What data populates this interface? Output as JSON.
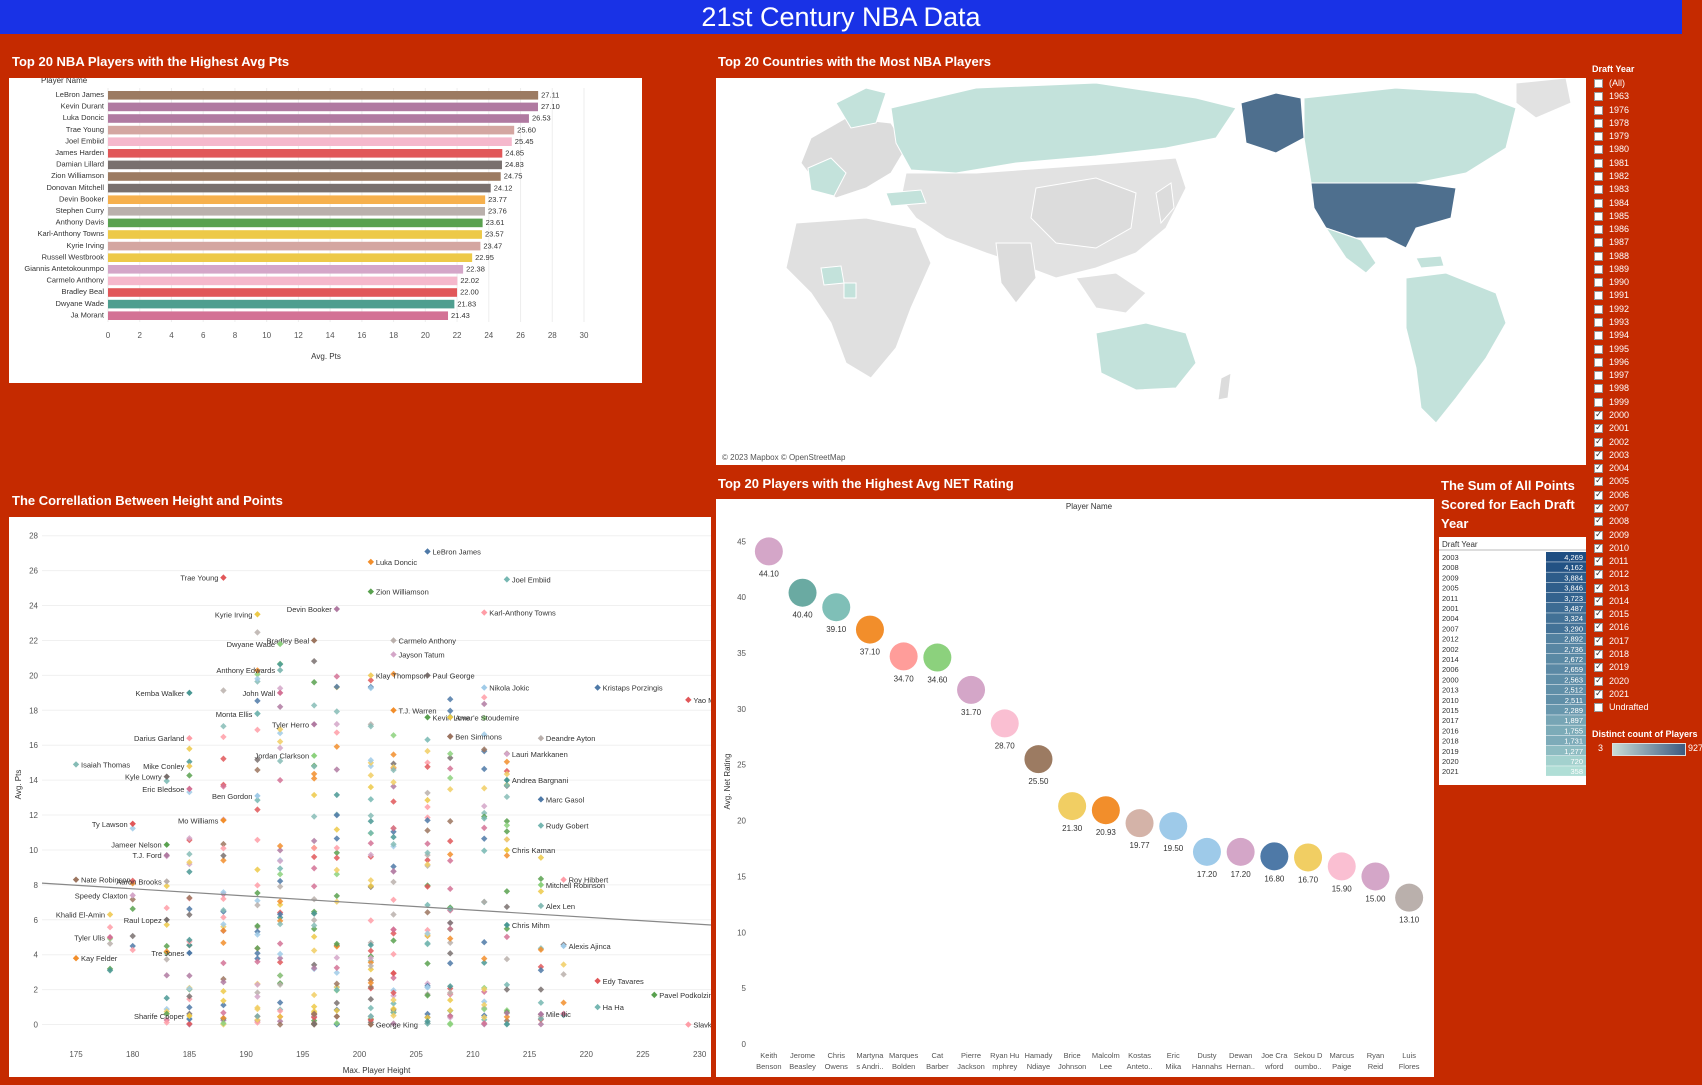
{
  "dashboard_title": "21st Century NBA Data",
  "colors": {
    "background": "#c52a00",
    "banner": "#1932e6"
  },
  "bar_panel": {
    "title": "Top 20 NBA Players with the Highest Avg Pts",
    "y_header": "Player Name",
    "x_label": "Avg. Pts"
  },
  "map_panel": {
    "title": "Top 20 Countries with the Most NBA Players",
    "attribution": "© 2023 Mapbox © OpenStreetMap"
  },
  "scatter_panel": {
    "title": "The Correllation Between Height and Points"
  },
  "bubble_panel": {
    "title": "Top 20 Players with the Highest Avg NET Rating",
    "header": "Player Name",
    "y_label": "Avg. Net Rating"
  },
  "sum_panel": {
    "title": "The Sum of All Points Scored for Each Draft Year",
    "header": "Draft Year"
  },
  "draft_filter": {
    "title": "Draft Year",
    "items": [
      {
        "label": "(All)",
        "checked": false
      },
      {
        "label": "1963",
        "checked": false
      },
      {
        "label": "1976",
        "checked": false
      },
      {
        "label": "1978",
        "checked": false
      },
      {
        "label": "1979",
        "checked": false
      },
      {
        "label": "1980",
        "checked": false
      },
      {
        "label": "1981",
        "checked": false
      },
      {
        "label": "1982",
        "checked": false
      },
      {
        "label": "1983",
        "checked": false
      },
      {
        "label": "1984",
        "checked": false
      },
      {
        "label": "1985",
        "checked": false
      },
      {
        "label": "1986",
        "checked": false
      },
      {
        "label": "1987",
        "checked": false
      },
      {
        "label": "1988",
        "checked": false
      },
      {
        "label": "1989",
        "checked": false
      },
      {
        "label": "1990",
        "checked": false
      },
      {
        "label": "1991",
        "checked": false
      },
      {
        "label": "1992",
        "checked": false
      },
      {
        "label": "1993",
        "checked": false
      },
      {
        "label": "1994",
        "checked": false
      },
      {
        "label": "1995",
        "checked": false
      },
      {
        "label": "1996",
        "checked": false
      },
      {
        "label": "1997",
        "checked": false
      },
      {
        "label": "1998",
        "checked": false
      },
      {
        "label": "1999",
        "checked": false
      },
      {
        "label": "2000",
        "checked": true
      },
      {
        "label": "2001",
        "checked": true
      },
      {
        "label": "2002",
        "checked": true
      },
      {
        "label": "2003",
        "checked": true
      },
      {
        "label": "2004",
        "checked": true
      },
      {
        "label": "2005",
        "checked": true
      },
      {
        "label": "2006",
        "checked": true
      },
      {
        "label": "2007",
        "checked": true
      },
      {
        "label": "2008",
        "checked": true
      },
      {
        "label": "2009",
        "checked": true
      },
      {
        "label": "2010",
        "checked": true
      },
      {
        "label": "2011",
        "checked": true
      },
      {
        "label": "2012",
        "checked": true
      },
      {
        "label": "2013",
        "checked": true
      },
      {
        "label": "2014",
        "checked": true
      },
      {
        "label": "2015",
        "checked": true
      },
      {
        "label": "2016",
        "checked": true
      },
      {
        "label": "2017",
        "checked": true
      },
      {
        "label": "2018",
        "checked": true
      },
      {
        "label": "2019",
        "checked": true
      },
      {
        "label": "2020",
        "checked": true
      },
      {
        "label": "2021",
        "checked": true
      },
      {
        "label": "Undrafted",
        "checked": false
      }
    ]
  },
  "color_legend": {
    "title": "Distinct count of Players",
    "min": "3",
    "max": "927"
  },
  "chart_data": [
    {
      "type": "bar",
      "orientation": "horizontal",
      "title": "Top 20 NBA Players with the Highest Avg Pts",
      "xlabel": "Avg. Pts",
      "ylabel": "Player Name",
      "xlim": [
        0,
        30
      ],
      "xticks": [
        0,
        2,
        4,
        6,
        8,
        10,
        12,
        14,
        16,
        18,
        20,
        22,
        24,
        26,
        28,
        30
      ],
      "categories": [
        "LeBron James",
        "Kevin Durant",
        "Luka Doncic",
        "Trae Young",
        "Joel Embiid",
        "James Harden",
        "Damian Lillard",
        "Zion Williamson",
        "Donovan Mitchell",
        "Devin Booker",
        "Stephen Curry",
        "Anthony Davis",
        "Karl-Anthony Towns",
        "Kyrie Irving",
        "Russell Westbrook",
        "Giannis Antetokounmpo",
        "Carmelo Anthony",
        "Bradley Beal",
        "Dwyane Wade",
        "Ja Morant"
      ],
      "values": [
        27.11,
        27.1,
        26.53,
        25.6,
        25.45,
        24.85,
        24.83,
        24.75,
        24.12,
        23.77,
        23.76,
        23.61,
        23.57,
        23.47,
        22.95,
        22.38,
        22.02,
        22.0,
        21.83,
        21.43
      ],
      "labels": [
        "27.11",
        "27.10",
        "26.53",
        "25.60",
        "25.45",
        "24.85",
        "24.83",
        "24.75",
        "24.12",
        "23.77",
        "23.76",
        "23.61",
        "23.57",
        "23.47",
        "22.95",
        "22.38",
        "22.02",
        "22.00",
        "21.83",
        "21.43"
      ],
      "colors": [
        "#9c7b62",
        "#b07aa1",
        "#b07aa1",
        "#d4a6a1",
        "#f5b8cc",
        "#e15759",
        "#79706e",
        "#9c7b62",
        "#79706e",
        "#f6b04d",
        "#bab0ac",
        "#59a14f",
        "#edc948",
        "#d4a6a1",
        "#edc948",
        "#d4a6c8",
        "#f5b8cc",
        "#e15759",
        "#4e9e8f",
        "#d37295"
      ]
    },
    {
      "type": "map",
      "title": "Top 20 Countries with the Most NBA Players",
      "highlighted": [
        "United States"
      ],
      "shaded": [
        "Canada",
        "Russia",
        "Australia",
        "Brazil",
        "France",
        "Spain",
        "Germany",
        "Argentina",
        "Serbia",
        "Greece",
        "Turkey",
        "Nigeria",
        "Italy",
        "Lithuania",
        "Croatia",
        "Slovenia",
        "Mexico",
        "Dominican Republic",
        "Cameroon"
      ]
    },
    {
      "type": "scatter",
      "title": "The Correllation Between Height and Points",
      "xlabel": "Max. Player Height",
      "ylabel": "Avg. Pts",
      "xlim": [
        172,
        231
      ],
      "ylim": [
        -1,
        28.5
      ],
      "xticks": [
        175,
        180,
        185,
        190,
        195,
        200,
        205,
        210,
        215,
        220,
        225,
        230
      ],
      "yticks": [
        0,
        2,
        4,
        6,
        8,
        10,
        12,
        14,
        16,
        18,
        20,
        22,
        24,
        26,
        28
      ],
      "trend_line": {
        "x": [
          172,
          231
        ],
        "y": [
          8.1,
          5.7
        ]
      },
      "labeled_points": [
        {
          "name": "LeBron James",
          "x": 206,
          "y": 27.1
        },
        {
          "name": "Luka Doncic",
          "x": 201,
          "y": 26.5
        },
        {
          "name": "Trae Young",
          "x": 188,
          "y": 25.6
        },
        {
          "name": "Joel Embiid",
          "x": 213,
          "y": 25.5
        },
        {
          "name": "Zion Williamson",
          "x": 201,
          "y": 24.8
        },
        {
          "name": "Kyrie Irving",
          "x": 191,
          "y": 23.5
        },
        {
          "name": "Devin Booker",
          "x": 198,
          "y": 23.8
        },
        {
          "name": "Karl-Anthony Towns",
          "x": 211,
          "y": 23.6
        },
        {
          "name": "Bradley Beal",
          "x": 196,
          "y": 22.0
        },
        {
          "name": "Carmelo Anthony",
          "x": 203,
          "y": 22.0
        },
        {
          "name": "Dwyane Wade",
          "x": 193,
          "y": 21.8
        },
        {
          "name": "Jayson Tatum",
          "x": 203,
          "y": 21.2
        },
        {
          "name": "Anthony Edwards",
          "x": 193,
          "y": 20.3
        },
        {
          "name": "Klay Thompson",
          "x": 201,
          "y": 20.0
        },
        {
          "name": "Paul George",
          "x": 206,
          "y": 20.0
        },
        {
          "name": "Kemba Walker",
          "x": 185,
          "y": 19.0
        },
        {
          "name": "John Wall",
          "x": 193,
          "y": 19.0
        },
        {
          "name": "Nikola Jokic",
          "x": 211,
          "y": 19.3
        },
        {
          "name": "Kristaps Porzingis",
          "x": 221,
          "y": 19.3
        },
        {
          "name": "T.J. Warren",
          "x": 203,
          "y": 18.0
        },
        {
          "name": "Yao Ming",
          "x": 229,
          "y": 18.6
        },
        {
          "name": "Monta Ellis",
          "x": 191,
          "y": 17.8
        },
        {
          "name": "Kevin Love",
          "x": 206,
          "y": 17.6
        },
        {
          "name": "Amar'e Stoudemire",
          "x": 208,
          "y": 17.6
        },
        {
          "name": "Tyler Herro",
          "x": 196,
          "y": 17.2
        },
        {
          "name": "Darius Garland",
          "x": 185,
          "y": 16.4
        },
        {
          "name": "Ben Simmons",
          "x": 208,
          "y": 16.5
        },
        {
          "name": "Deandre Ayton",
          "x": 216,
          "y": 16.4
        },
        {
          "name": "Jordan Clarkson",
          "x": 196,
          "y": 15.4
        },
        {
          "name": "Lauri Markkanen",
          "x": 213,
          "y": 15.5
        },
        {
          "name": "Isaiah Thomas",
          "x": 175,
          "y": 14.9
        },
        {
          "name": "Mike Conley",
          "x": 185,
          "y": 14.8
        },
        {
          "name": "Kyle Lowry",
          "x": 183,
          "y": 14.2
        },
        {
          "name": "Andrea Bargnani",
          "x": 213,
          "y": 14.0
        },
        {
          "name": "Eric Bledsoe",
          "x": 185,
          "y": 13.5
        },
        {
          "name": "Ben Gordon",
          "x": 191,
          "y": 13.1
        },
        {
          "name": "Marc Gasol",
          "x": 216,
          "y": 12.9
        },
        {
          "name": "Mo Williams",
          "x": 188,
          "y": 11.7
        },
        {
          "name": "Ty Lawson",
          "x": 180,
          "y": 11.5
        },
        {
          "name": "Rudy Gobert",
          "x": 216,
          "y": 11.4
        },
        {
          "name": "Jameer Nelson",
          "x": 183,
          "y": 10.3
        },
        {
          "name": "Chris Kaman",
          "x": 213,
          "y": 10.0
        },
        {
          "name": "T.J. Ford",
          "x": 183,
          "y": 9.7
        },
        {
          "name": "Roy Hibbert",
          "x": 218,
          "y": 8.3
        },
        {
          "name": "Nate Robinson",
          "x": 175,
          "y": 8.3
        },
        {
          "name": "Aaron Brooks",
          "x": 183,
          "y": 8.2
        },
        {
          "name": "Mitchell Robinson",
          "x": 216,
          "y": 8.0
        },
        {
          "name": "Speedy Claxton",
          "x": 180,
          "y": 7.4
        },
        {
          "name": "Alex Len",
          "x": 216,
          "y": 6.8
        },
        {
          "name": "Khalid El-Amin",
          "x": 178,
          "y": 6.3
        },
        {
          "name": "Raul Lopez",
          "x": 183,
          "y": 6.0
        },
        {
          "name": "Chris Mihm",
          "x": 213,
          "y": 5.7
        },
        {
          "name": "Tyler Ulis",
          "x": 178,
          "y": 5.0
        },
        {
          "name": "Alexis Ajinca",
          "x": 218,
          "y": 4.5
        },
        {
          "name": "Tre Jones",
          "x": 185,
          "y": 4.1
        },
        {
          "name": "Kay Felder",
          "x": 175,
          "y": 3.8
        },
        {
          "name": "Edy Tavares",
          "x": 221,
          "y": 2.5
        },
        {
          "name": "Ha Ha",
          "x": 221,
          "y": 1.0
        },
        {
          "name": "Pavel Podkolzin",
          "x": 226,
          "y": 1.7
        },
        {
          "name": "Sharife Cooper",
          "x": 185,
          "y": 0.5
        },
        {
          "name": "Mile Ilic",
          "x": 216,
          "y": 0.6
        },
        {
          "name": "Slavko Vranes",
          "x": 229,
          "y": 0.0
        },
        {
          "name": "George King",
          "x": 201,
          "y": 0.0
        }
      ],
      "scatter_density": {
        "heights": [
          178,
          180,
          183,
          185,
          188,
          191,
          193,
          196,
          198,
          201,
          203,
          206,
          208,
          211,
          213,
          216,
          218
        ],
        "ranges": [
          [
            3,
            9
          ],
          [
            4,
            12
          ],
          [
            0,
            15
          ],
          [
            0,
            17
          ],
          [
            0,
            20
          ],
          [
            0,
            24
          ],
          [
            0,
            22
          ],
          [
            0,
            22
          ],
          [
            0,
            21
          ],
          [
            0,
            20
          ],
          [
            0,
            21
          ],
          [
            0,
            17
          ],
          [
            0,
            19
          ],
          [
            0,
            19
          ],
          [
            0,
            16
          ],
          [
            0,
            10
          ],
          [
            0,
            8
          ]
        ],
        "counts": [
          5,
          8,
          16,
          30,
          34,
          38,
          40,
          42,
          40,
          44,
          42,
          40,
          38,
          32,
          28,
          14,
          6
        ]
      }
    },
    {
      "type": "bubble",
      "title": "Top 20 Players with the Highest Avg NET Rating",
      "xlabel": "Player Name",
      "ylabel": "Avg. Net Rating",
      "ylim": [
        0,
        47
      ],
      "yticks": [
        0,
        5,
        10,
        15,
        20,
        25,
        30,
        35,
        40,
        45
      ],
      "categories": [
        "Keith Benson",
        "Jerome Beasley",
        "Chris Owens",
        "Martynas Andriuskevicius",
        "Marques Bolden",
        "Cat Barber",
        "Pierre Jackson",
        "Ryan Humphrey",
        "Hamady Ndiaye",
        "Brice Johnson",
        "Malcolm Lee",
        "Kostas Antetokounmpo",
        "Eric Mika",
        "Dusty Hannahs",
        "Dewan Hernandez",
        "Joe Crawford",
        "Sekou Doumbouya",
        "Marcus Paige",
        "Ryan Reid",
        "Luis Flores"
      ],
      "category_labels": [
        [
          "Keith",
          "Benson"
        ],
        [
          "Jerome",
          "Beasley"
        ],
        [
          "Chris",
          "Owens"
        ],
        [
          "Martyna",
          "s Andri.."
        ],
        [
          "Marques",
          "Bolden"
        ],
        [
          "Cat",
          "Barber"
        ],
        [
          "Pierre",
          "Jackson"
        ],
        [
          "Ryan Hu",
          "mphrey"
        ],
        [
          "Hamady",
          "Ndiaye"
        ],
        [
          "Brice",
          "Johnson"
        ],
        [
          "Malcolm",
          "Lee"
        ],
        [
          "Kostas",
          "Anteto.."
        ],
        [
          "Eric",
          "Mika"
        ],
        [
          "Dusty",
          "Hannahs"
        ],
        [
          "Dewan",
          "Hernan.."
        ],
        [
          "Joe Cra",
          "wford"
        ],
        [
          "Sekou D",
          "oumbo.."
        ],
        [
          "Marcus",
          "Paige"
        ],
        [
          "Ryan",
          "Reid"
        ],
        [
          "Luis",
          "Flores"
        ]
      ],
      "values": [
        44.1,
        40.4,
        39.1,
        37.1,
        34.7,
        34.6,
        31.7,
        28.7,
        25.5,
        21.3,
        20.93,
        19.77,
        19.5,
        17.2,
        17.2,
        16.8,
        16.7,
        15.9,
        15.0,
        13.1
      ],
      "labels": [
        "44.10",
        "40.40",
        "39.10",
        "37.10",
        "34.70",
        "34.60",
        "31.70",
        "28.70",
        "25.50",
        "21.30",
        "20.93",
        "19.77",
        "19.50",
        "17.20",
        "17.20",
        "16.80",
        "16.70",
        "15.90",
        "15.00",
        "13.10"
      ],
      "colors": [
        "#d4a6c8",
        "#6aaaa2",
        "#7fbfb7",
        "#f28e2b",
        "#ff9d9a",
        "#8cd17d",
        "#d4a6c8",
        "#fabfd2",
        "#9c7b62",
        "#f1ce63",
        "#f28e2b",
        "#d4b3a8",
        "#9ecae9",
        "#9ecae9",
        "#d4a6c8",
        "#4e79a7",
        "#f1ce63",
        "#fabfd2",
        "#d4a6c8",
        "#bab0ac"
      ]
    },
    {
      "type": "table",
      "title": "The Sum of All Points Scored for Each Draft Year",
      "columns": [
        "Draft Year",
        "Sum of Points"
      ],
      "rows": [
        "2003",
        "2008",
        "2009",
        "2005",
        "2011",
        "2001",
        "2004",
        "2007",
        "2012",
        "2002",
        "2014",
        "2006",
        "2000",
        "2013",
        "2010",
        "2015",
        "2017",
        "2016",
        "2018",
        "2019",
        "2020",
        "2021"
      ],
      "values": [
        4269,
        4162,
        3884,
        3846,
        3723,
        3487,
        3324,
        3290,
        2892,
        2736,
        2672,
        2659,
        2563,
        2512,
        2511,
        2289,
        1897,
        1755,
        1731,
        1277,
        720,
        358
      ],
      "value_labels": [
        "4,269",
        "4,162",
        "3,884",
        "3,846",
        "3,723",
        "3,487",
        "3,324",
        "3,290",
        "2,892",
        "2,736",
        "2,672",
        "2,659",
        "2,563",
        "2,512",
        "2,511",
        "2,289",
        "1,897",
        "1,755",
        "1,731",
        "1,277",
        "720",
        "358"
      ]
    }
  ]
}
